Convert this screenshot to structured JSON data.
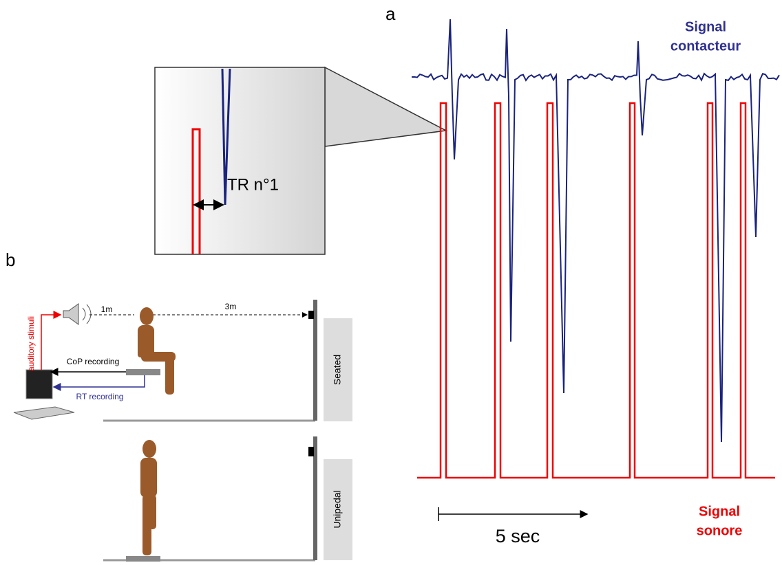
{
  "panel_labels": {
    "a": "a",
    "b": "b"
  },
  "signals": {
    "contact": {
      "label_lines": [
        "Signal",
        "contacteur"
      ]
    },
    "sound": {
      "label_lines": [
        "Signal",
        "sonore"
      ]
    }
  },
  "zoom": {
    "label": "TR n°1"
  },
  "scale_bar": {
    "label": "5 sec"
  },
  "setup": {
    "distance_speaker": "1m",
    "distance_target": "3m",
    "stimulus": "auditory stimuli",
    "cop": "CoP recording",
    "rt": "RT recording",
    "conditions": [
      "Seated",
      "Unipedal"
    ]
  }
}
